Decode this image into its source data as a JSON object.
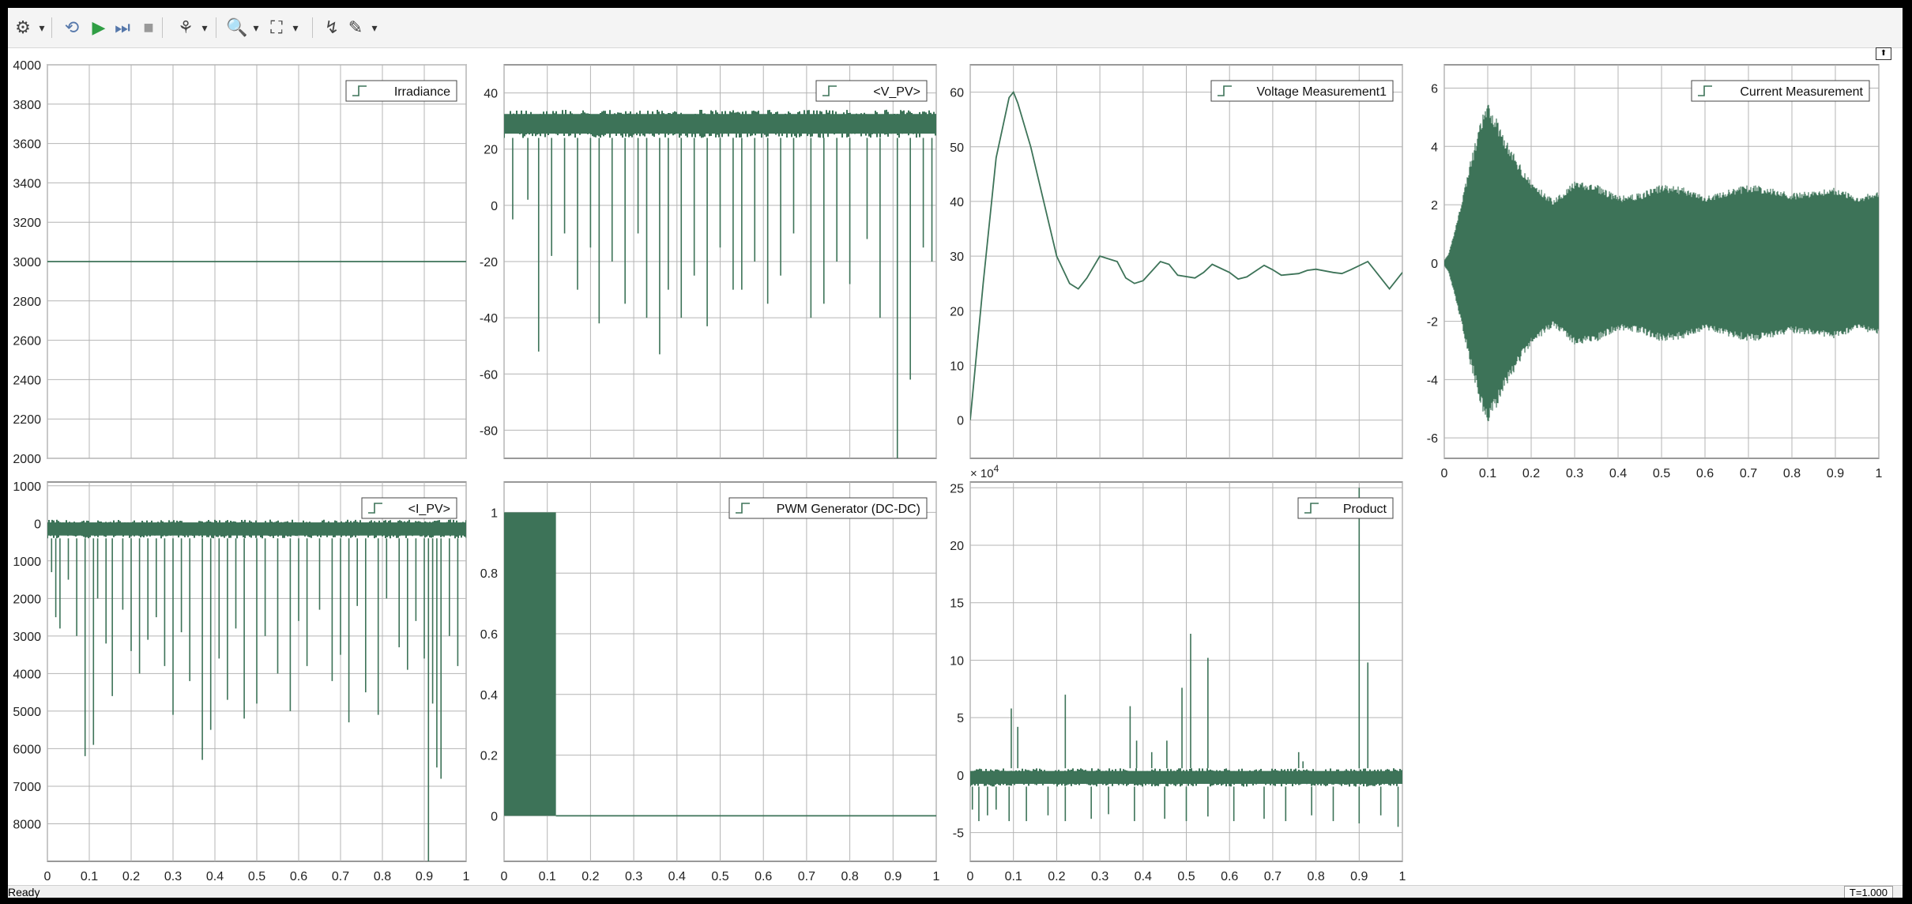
{
  "toolbar": {
    "buttons": [
      {
        "name": "settings-icon",
        "glyph": "⚙",
        "arrow": true
      },
      {
        "name": "restore-icon",
        "glyph": "⟲"
      },
      {
        "name": "run-icon",
        "glyph": "▶"
      },
      {
        "name": "step-forward-icon",
        "glyph": "⏭"
      },
      {
        "name": "stop-icon",
        "glyph": "■"
      },
      {
        "name": "highlight-icon",
        "glyph": "⚘",
        "arrow": true
      },
      {
        "name": "zoom-icon",
        "glyph": "🔍",
        "arrow": true
      },
      {
        "name": "fit-to-view-icon",
        "glyph": "⛶",
        "arrow": true
      },
      {
        "name": "triggers-icon",
        "glyph": "↯"
      },
      {
        "name": "style-icon",
        "glyph": "✎",
        "arrow": true
      }
    ]
  },
  "status": {
    "text": "Ready",
    "time": "T=1.000"
  },
  "colors": {
    "signal": "#3d7358",
    "grid": "#b4b4b4",
    "axes": "#555555",
    "background": "#ffffff"
  },
  "chart_data": [
    {
      "type": "line",
      "legend": "Irradiance",
      "xlim": [
        0,
        1
      ],
      "ylim": [
        2000,
        4000
      ],
      "yticks": [
        2000,
        2200,
        2400,
        2600,
        2800,
        3000,
        3200,
        3400,
        3600,
        3800,
        4000
      ],
      "ytick_labels": [
        "2000",
        "2200",
        "2400",
        "2600",
        "2800",
        "3000",
        "3200",
        "3400",
        "3600",
        "3800",
        "4000"
      ],
      "x": [
        0,
        1
      ],
      "y": [
        3000,
        3000
      ]
    },
    {
      "type": "line",
      "legend": "<V_PV>",
      "xlim": [
        0,
        1
      ],
      "ylim": [
        -90,
        50
      ],
      "yticks": [
        -80,
        -60,
        -40,
        -20,
        0,
        20,
        40
      ],
      "ytick_labels": [
        "-80",
        "-60",
        "-40",
        "-20",
        "0",
        "20",
        "40"
      ],
      "band": [
        24,
        34
      ],
      "spikes_down": [
        [
          0.02,
          -5
        ],
        [
          0.055,
          2
        ],
        [
          0.08,
          -52
        ],
        [
          0.11,
          -18
        ],
        [
          0.14,
          -10
        ],
        [
          0.17,
          -30
        ],
        [
          0.2,
          -15
        ],
        [
          0.22,
          -42
        ],
        [
          0.25,
          -20
        ],
        [
          0.28,
          -35
        ],
        [
          0.31,
          -10
        ],
        [
          0.33,
          -40
        ],
        [
          0.36,
          -53
        ],
        [
          0.38,
          -30
        ],
        [
          0.41,
          -40
        ],
        [
          0.44,
          -25
        ],
        [
          0.47,
          -43
        ],
        [
          0.5,
          -15
        ],
        [
          0.53,
          -30
        ],
        [
          0.55,
          -30
        ],
        [
          0.58,
          -20
        ],
        [
          0.61,
          -35
        ],
        [
          0.64,
          -25
        ],
        [
          0.67,
          -10
        ],
        [
          0.71,
          -40
        ],
        [
          0.74,
          -35
        ],
        [
          0.77,
          -20
        ],
        [
          0.8,
          -28
        ],
        [
          0.84,
          -12
        ],
        [
          0.87,
          -40
        ],
        [
          0.91,
          -90
        ],
        [
          0.94,
          -62
        ],
        [
          0.97,
          -15
        ],
        [
          0.99,
          -20
        ]
      ]
    },
    {
      "type": "line",
      "legend": "Voltage Measurement1",
      "xlim": [
        0,
        1
      ],
      "ylim": [
        -7,
        65
      ],
      "yticks": [
        0,
        10,
        20,
        30,
        40,
        50,
        60
      ],
      "ytick_labels": [
        "0",
        "10",
        "20",
        "30",
        "40",
        "50",
        "60"
      ],
      "x": [
        0,
        0.03,
        0.06,
        0.09,
        0.1,
        0.11,
        0.14,
        0.17,
        0.2,
        0.23,
        0.25,
        0.27,
        0.3,
        0.34,
        0.36,
        0.38,
        0.4,
        0.44,
        0.46,
        0.48,
        0.52,
        0.54,
        0.56,
        0.6,
        0.62,
        0.64,
        0.68,
        0.7,
        0.72,
        0.76,
        0.78,
        0.8,
        0.84,
        0.86,
        0.88,
        0.92,
        0.94,
        0.97,
        1.0
      ],
      "y": [
        0,
        25,
        48,
        59,
        60,
        58,
        50,
        40,
        30,
        25,
        24,
        26,
        30,
        29,
        26,
        25,
        25.5,
        29,
        28.5,
        26.5,
        26,
        27,
        28.5,
        27,
        25.8,
        26.2,
        28.3,
        27.5,
        26.5,
        26.8,
        27.4,
        27.6,
        27,
        26.8,
        27.5,
        29,
        27,
        24,
        27
      ]
    },
    {
      "type": "line",
      "legend": "Current Measurement",
      "xlim": [
        0,
        1
      ],
      "ylim": [
        -6.7,
        6.8
      ],
      "yticks": [
        -6,
        -4,
        -2,
        0,
        2,
        4,
        6
      ],
      "ytick_labels": [
        "-6",
        "-4",
        "-2",
        "0",
        "2",
        "4",
        "6"
      ],
      "xticks": [
        0,
        0.1,
        0.2,
        0.3,
        0.4,
        0.5,
        0.6,
        0.7,
        0.8,
        0.9,
        1
      ],
      "xtick_labels": [
        "0",
        "0.1",
        "0.2",
        "0.3",
        "0.4",
        "0.5",
        "0.6",
        "0.7",
        "0.8",
        "0.9",
        "1"
      ],
      "envelope_x": [
        0,
        0.01,
        0.03,
        0.06,
        0.09,
        0.1,
        0.12,
        0.15,
        0.2,
        0.25,
        0.3,
        0.35,
        0.4,
        0.45,
        0.5,
        0.55,
        0.6,
        0.65,
        0.7,
        0.75,
        0.8,
        0.85,
        0.9,
        0.95,
        1.0
      ],
      "envelope_y": [
        0.1,
        0.3,
        1.5,
        3.5,
        5.2,
        5.5,
        5,
        4,
        2.8,
        2.2,
        2.8,
        2.7,
        2.3,
        2.4,
        2.7,
        2.6,
        2.3,
        2.5,
        2.7,
        2.6,
        2.4,
        2.5,
        2.6,
        2.3,
        2.5
      ]
    },
    {
      "type": "line",
      "legend": "<I_PV>",
      "xlim": [
        0,
        1
      ],
      "ylim": [
        -9000,
        1100
      ],
      "yticks": [
        -8000,
        -7000,
        -6000,
        -5000,
        -4000,
        -3000,
        -2000,
        -1000,
        0,
        1000
      ],
      "ytick_labels": [
        "8000",
        "7000",
        "6000",
        "5000",
        "4000",
        "3000",
        "2000",
        "1000",
        "0",
        "1000"
      ],
      "xticks": [
        0,
        0.1,
        0.2,
        0.3,
        0.4,
        0.5,
        0.6,
        0.7,
        0.8,
        0.9,
        1
      ],
      "xtick_labels": [
        "0",
        "0.1",
        "0.2",
        "0.3",
        "0.4",
        "0.5",
        "0.6",
        "0.7",
        "0.8",
        "0.9",
        "1"
      ],
      "band": [
        -400,
        100
      ],
      "spikes_down": [
        [
          0.01,
          -1300
        ],
        [
          0.02,
          -2500
        ],
        [
          0.03,
          -2800
        ],
        [
          0.05,
          -1500
        ],
        [
          0.07,
          -3000
        ],
        [
          0.09,
          -6200
        ],
        [
          0.11,
          -5900
        ],
        [
          0.12,
          -2000
        ],
        [
          0.14,
          -3200
        ],
        [
          0.155,
          -4600
        ],
        [
          0.18,
          -2300
        ],
        [
          0.2,
          -3400
        ],
        [
          0.22,
          -4000
        ],
        [
          0.24,
          -3100
        ],
        [
          0.26,
          -2500
        ],
        [
          0.28,
          -3800
        ],
        [
          0.3,
          -5100
        ],
        [
          0.32,
          -2900
        ],
        [
          0.34,
          -4200
        ],
        [
          0.37,
          -6300
        ],
        [
          0.39,
          -5500
        ],
        [
          0.41,
          -3600
        ],
        [
          0.43,
          -4700
        ],
        [
          0.45,
          -2800
        ],
        [
          0.47,
          -5200
        ],
        [
          0.5,
          -4800
        ],
        [
          0.52,
          -3000
        ],
        [
          0.55,
          -4000
        ],
        [
          0.58,
          -5000
        ],
        [
          0.6,
          -2600
        ],
        [
          0.62,
          -3800
        ],
        [
          0.65,
          -2300
        ],
        [
          0.68,
          -4200
        ],
        [
          0.7,
          -3500
        ],
        [
          0.72,
          -5300
        ],
        [
          0.74,
          -2200
        ],
        [
          0.76,
          -4500
        ],
        [
          0.79,
          -5100
        ],
        [
          0.81,
          -2000
        ],
        [
          0.84,
          -3300
        ],
        [
          0.86,
          -3900
        ],
        [
          0.88,
          -2600
        ],
        [
          0.9,
          -3600
        ],
        [
          0.91,
          -9000
        ],
        [
          0.92,
          -4800
        ],
        [
          0.93,
          -6500
        ],
        [
          0.94,
          -6800
        ],
        [
          0.96,
          -3000
        ],
        [
          0.98,
          -3800
        ]
      ]
    },
    {
      "type": "line",
      "legend": "PWM Generator (DC-DC)",
      "xlim": [
        0,
        1
      ],
      "ylim": [
        -0.15,
        1.1
      ],
      "yticks": [
        0,
        0.2,
        0.4,
        0.6,
        0.8,
        1
      ],
      "ytick_labels": [
        "0",
        "0.2",
        "0.4",
        "0.6",
        "0.8",
        "1"
      ],
      "xticks": [
        0,
        0.1,
        0.2,
        0.3,
        0.4,
        0.5,
        0.6,
        0.7,
        0.8,
        0.9,
        1
      ],
      "xtick_labels": [
        "0",
        "0.1",
        "0.2",
        "0.3",
        "0.4",
        "0.5",
        "0.6",
        "0.7",
        "0.8",
        "0.9",
        "1"
      ],
      "switching_until": 0.12,
      "high": 1,
      "low": 0
    },
    {
      "type": "line",
      "legend": "Product",
      "exponent_label": "× 10",
      "exponent_power": "4",
      "xlim": [
        0,
        1
      ],
      "ylim": [
        -7.5,
        25.5
      ],
      "yticks": [
        -5,
        0,
        5,
        10,
        15,
        20,
        25
      ],
      "ytick_labels": [
        "-5",
        "0",
        "5",
        "10",
        "15",
        "20",
        "25"
      ],
      "xticks": [
        0,
        0.1,
        0.2,
        0.3,
        0.4,
        0.5,
        0.6,
        0.7,
        0.8,
        0.9,
        1
      ],
      "xtick_labels": [
        "0",
        "0.1",
        "0.2",
        "0.3",
        "0.4",
        "0.5",
        "0.6",
        "0.7",
        "0.8",
        "0.9",
        "1"
      ],
      "band": [
        -1,
        0.6
      ],
      "spikes_up": [
        [
          0.095,
          5.8
        ],
        [
          0.11,
          4.2
        ],
        [
          0.22,
          7
        ],
        [
          0.37,
          6
        ],
        [
          0.385,
          3
        ],
        [
          0.42,
          2
        ],
        [
          0.455,
          3
        ],
        [
          0.49,
          7.6
        ],
        [
          0.51,
          12.3
        ],
        [
          0.55,
          10.2
        ],
        [
          0.76,
          2
        ],
        [
          0.77,
          1.2
        ],
        [
          0.9,
          25
        ],
        [
          0.92,
          9.8
        ]
      ],
      "spikes_down": [
        [
          0.005,
          -3
        ],
        [
          0.02,
          -4
        ],
        [
          0.04,
          -3.5
        ],
        [
          0.06,
          -3
        ],
        [
          0.09,
          -4
        ],
        [
          0.13,
          -4
        ],
        [
          0.18,
          -3.5
        ],
        [
          0.22,
          -4
        ],
        [
          0.28,
          -3.8
        ],
        [
          0.32,
          -3.4
        ],
        [
          0.38,
          -4
        ],
        [
          0.45,
          -3.8
        ],
        [
          0.5,
          -4
        ],
        [
          0.55,
          -3.6
        ],
        [
          0.61,
          -4
        ],
        [
          0.68,
          -3.8
        ],
        [
          0.73,
          -4
        ],
        [
          0.79,
          -3.5
        ],
        [
          0.84,
          -4
        ],
        [
          0.9,
          -4.2
        ],
        [
          0.95,
          -3.5
        ],
        [
          0.99,
          -4.5
        ]
      ]
    }
  ]
}
